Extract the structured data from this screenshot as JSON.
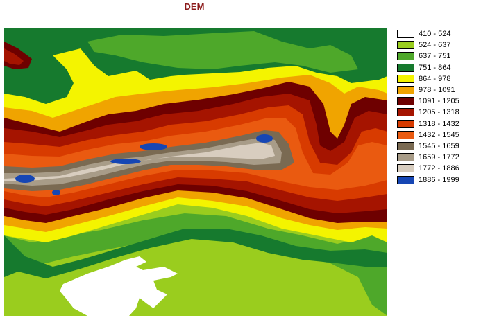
{
  "title": "DEM",
  "legend": {
    "items": [
      {
        "label": "410 - 524",
        "color": "#ffffff"
      },
      {
        "label": "524 - 637",
        "color": "#9acd1e"
      },
      {
        "label": "637 - 751",
        "color": "#4ea82a"
      },
      {
        "label": "751 - 864",
        "color": "#167a2e"
      },
      {
        "label": "864 - 978",
        "color": "#f4f400"
      },
      {
        "label": "978 - 1091",
        "color": "#f0a400"
      },
      {
        "label": "1091 - 1205",
        "color": "#6e0000"
      },
      {
        "label": "1205 - 1318",
        "color": "#a51400"
      },
      {
        "label": "1318 - 1432",
        "color": "#d83b00"
      },
      {
        "label": "1432 - 1545",
        "color": "#ea5a10"
      },
      {
        "label": "1545 - 1659",
        "color": "#7a6a52"
      },
      {
        "label": "1659 - 1772",
        "color": "#a89c88"
      },
      {
        "label": "1772 - 1886",
        "color": "#d8cdbf"
      },
      {
        "label": "1886 - 1999",
        "color": "#1646b4"
      }
    ]
  }
}
